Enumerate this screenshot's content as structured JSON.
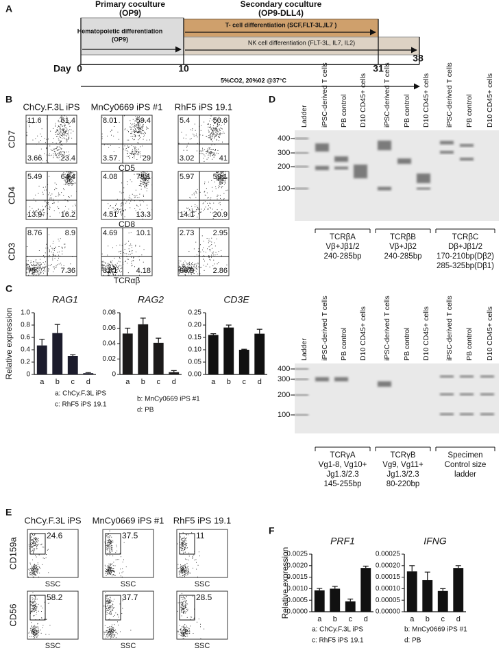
{
  "chart_data": [
    {
      "type": "bar",
      "title": "RAG1",
      "ylabel": "Relative expression",
      "categories": [
        "a",
        "b",
        "c",
        "d"
      ],
      "values": [
        0.47,
        0.67,
        0.3,
        0.02
      ],
      "errors": [
        0.1,
        0.14,
        0.02,
        0.01
      ],
      "color": "#1c1c2c",
      "ylim": [
        0,
        1
      ],
      "yticks": [
        0,
        0.2,
        0.4,
        0.6,
        0.8,
        {
          "value": 1,
          "label": "1.0"
        }
      ]
    },
    {
      "type": "bar",
      "title": "RAG2",
      "categories": [
        "a",
        "b",
        "c",
        "d"
      ],
      "values": [
        0.053,
        0.065,
        0.041,
        0.003
      ],
      "errors": [
        0.007,
        0.008,
        0.006,
        0.002
      ],
      "color": "#1c1a1a",
      "ylim": [
        0,
        0.08
      ],
      "yticks": [
        0,
        0.02,
        0.04,
        0.06,
        0.08
      ]
    },
    {
      "type": "bar",
      "title": "CD3E",
      "categories": [
        "a",
        "b",
        "c",
        "d"
      ],
      "values": [
        0.16,
        0.19,
        0.1,
        0.165
      ],
      "errors": [
        0.005,
        0.01,
        0.002,
        0.018
      ],
      "color": "#111111",
      "ylim": [
        0,
        0.25
      ],
      "yticks": [
        {
          "value": 0,
          "label": "0.00"
        },
        0.05,
        {
          "value": 0.1,
          "label": "0.10"
        },
        0.15,
        {
          "value": 0.2,
          "label": "0.20"
        },
        0.25
      ]
    },
    {
      "type": "bar",
      "title": "PRF1",
      "ylabel": "Relative expression",
      "categories": [
        "a",
        "b",
        "c",
        "d"
      ],
      "values": [
        0.00093,
        0.001,
        0.00045,
        0.0019
      ],
      "errors": [
        8e-05,
        0.0001,
        0.0001,
        8e-05
      ],
      "color": "#111111",
      "ylim": [
        0,
        0.0025
      ],
      "yticks": [
        {
          "value": 0,
          "label": "0.0000"
        },
        0.0005,
        {
          "value": 0.001,
          "label": "0.0010"
        },
        0.0015,
        {
          "value": 0.002,
          "label": "0.0020"
        },
        0.0025
      ]
    },
    {
      "type": "bar",
      "title": "IFNG",
      "categories": [
        "a",
        "b",
        "c",
        "d"
      ],
      "values": [
        0.000175,
        0.000137,
        9e-05,
        0.00019
      ],
      "errors": [
        2.5e-05,
        3.5e-05,
        1e-05,
        1e-05
      ],
      "color": "#111111",
      "ylim": [
        0,
        0.00025
      ],
      "yticks": [
        {
          "value": 0,
          "label": "0.00000"
        },
        5e-05,
        {
          "value": 0.0001,
          "label": "0.00010"
        },
        0.00015,
        {
          "value": 0.0002,
          "label": "0.00020"
        },
        0.00025
      ]
    }
  ],
  "panel_a": {
    "label": "A",
    "primary": {
      "title": "Primary coculture",
      "subtitle": "(OP9)"
    },
    "secondary": {
      "title": "Secondary coculture",
      "subtitle": "(OP9-DLL4)"
    },
    "hematopoietic": {
      "title": "Hematopoietic differentiation",
      "subtitle": "(OP9)"
    },
    "t_cell": "T- cell differentiation  (SCF,FLT-3L,IL7 )",
    "nk_cell": "NK cell differentiation  (FLT-3L, IL7, IL2)",
    "day_label": "Day",
    "days": [
      "0",
      "10",
      "31",
      "38"
    ],
    "conditions": "5%CO2, 20%02 @37°C"
  },
  "panel_b": {
    "label": "B",
    "columns": [
      "ChCy.F.3L iPS",
      "MnCy0669 iPS #1",
      "RhF5 iPS 19.1"
    ],
    "rows": [
      {
        "y_label": "CD7",
        "x_label": "CD5",
        "quadrants": [
          [
            "11.6",
            "61.4",
            "3.66",
            "23.4"
          ],
          [
            "8.01",
            "59.4",
            "3.57",
            "29"
          ],
          [
            "5.4",
            "50.6",
            "3.02",
            "41"
          ]
        ]
      },
      {
        "y_label": "CD4",
        "x_label": "CD8",
        "quadrants": [
          [
            "5.49",
            "64.4",
            "13.9",
            "16.2"
          ],
          [
            "4.08",
            "78.1",
            "4.51",
            "13.3"
          ],
          [
            "5.97",
            "59.1",
            "14.1",
            "20.9"
          ]
        ]
      },
      {
        "y_label": "CD3",
        "x_label": "TCRαβ",
        "quadrants": [
          [
            "8.76",
            "8.9",
            "75",
            "7.36"
          ],
          [
            "4.69",
            "10.1",
            "81.1",
            "4.18"
          ],
          [
            "2.73",
            "2.95",
            "90.9",
            "2.86"
          ]
        ]
      }
    ]
  },
  "panel_c": {
    "label": "C",
    "key": [
      "a: ChCy.F.3L iPS",
      "c: RhF5 iPS 19.1",
      "b: MnCy0669 iPS #1",
      "d: PB"
    ]
  },
  "panel_d": {
    "label": "D",
    "gels": [
      {
        "lanes": [
          "Ladder",
          "iPSC-derived T cells",
          "PB control",
          "D10 CD45+ cells",
          "iPSC-derived T cells",
          "PB control",
          "D10 CD45+ cells",
          "iPSC-derived T cells",
          "PB control",
          "D10 CD45+ cells"
        ],
        "ladder": [
          "400",
          "300",
          "200",
          "100"
        ],
        "groups": [
          {
            "lines": [
              "TCRβA",
              "Vβ+Jβ1/2",
              "240-285bp"
            ]
          },
          {
            "lines": [
              "TCRβB",
              "Vβ+Jβ2",
              "240-285bp"
            ]
          },
          {
            "lines": [
              "TCRβC",
              "Dβ+Jβ1/2",
              "170-210bp(Dβ2)",
              "285-325bp(Dβ1)"
            ]
          }
        ]
      },
      {
        "lanes": [
          "Ladder",
          "iPSC-derived T cells",
          "PB control",
          "D10 CD45+ cells",
          "iPSC-derived T cells",
          "PB control",
          "D10 CD45+ cells",
          "iPSC-derived T cells",
          "PB control",
          "D10 CD45+ cells"
        ],
        "ladder": [
          "400",
          "300",
          "200",
          "100"
        ],
        "groups": [
          {
            "lines": [
              "TCRγA",
              "Vg1-8, Vg10+",
              "Jg1.3/2.3",
              "145-255bp"
            ]
          },
          {
            "lines": [
              "TCRγB",
              "Vg9, Vg11+",
              "Jg1.3/2.3",
              "80-220bp"
            ]
          },
          {
            "lines": [
              "Specimen",
              "Control size",
              "ladder"
            ]
          }
        ]
      }
    ]
  },
  "panel_e": {
    "label": "E",
    "columns": [
      "ChCy.F.3L iPS",
      "MnCy0669 iPS #1",
      "RhF5 iPS 19.1"
    ],
    "rows": [
      {
        "y_label": "CD159a",
        "x_label": "SSC",
        "gates": [
          "24.6",
          "37.5",
          "11"
        ]
      },
      {
        "y_label": "CD56",
        "x_label": "SSC",
        "gates": [
          "58.2",
          "37.7",
          "28.5"
        ]
      }
    ]
  },
  "panel_f": {
    "label": "F",
    "key": [
      "a: ChCy.F.3L iPS",
      "c: RhF5 iPS 19.1",
      "b: MnCy0669 iPS #1",
      "d: PB"
    ]
  }
}
